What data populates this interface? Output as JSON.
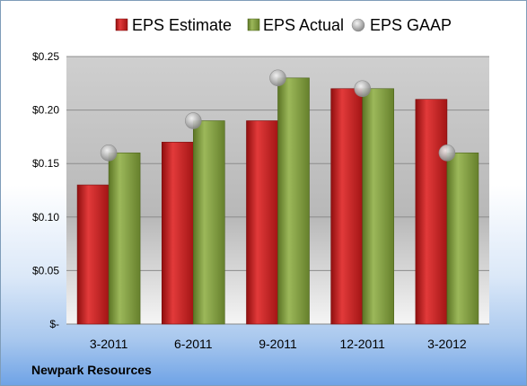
{
  "footer": {
    "company": "Newpark Resources"
  },
  "colors": {
    "estimate": "#cc1f1f",
    "actual": "#7e9a3a",
    "gaap": "#b9b9b9",
    "plot_bg_top": "#c9c9c9",
    "plot_bg_bottom": "#f4f4f4"
  },
  "chart_data": {
    "type": "bar",
    "categories": [
      "3-2011",
      "6-2011",
      "9-2011",
      "12-2011",
      "3-2012"
    ],
    "series": [
      {
        "name": "EPS Estimate",
        "kind": "bar",
        "values": [
          0.13,
          0.17,
          0.19,
          0.22,
          0.21
        ]
      },
      {
        "name": "EPS Actual",
        "kind": "bar",
        "values": [
          0.16,
          0.19,
          0.23,
          0.22,
          0.16
        ]
      },
      {
        "name": "EPS GAAP",
        "kind": "marker",
        "values": [
          0.16,
          0.19,
          0.23,
          0.22,
          0.16
        ]
      }
    ],
    "ylim": [
      0,
      0.25
    ],
    "yticks": [
      0,
      0.05,
      0.1,
      0.15,
      0.2,
      0.25
    ],
    "ytick_labels": [
      "$-",
      "$0.05",
      "$0.10",
      "$0.15",
      "$0.20",
      "$0.25"
    ],
    "grid": true,
    "legend_position": "top"
  }
}
